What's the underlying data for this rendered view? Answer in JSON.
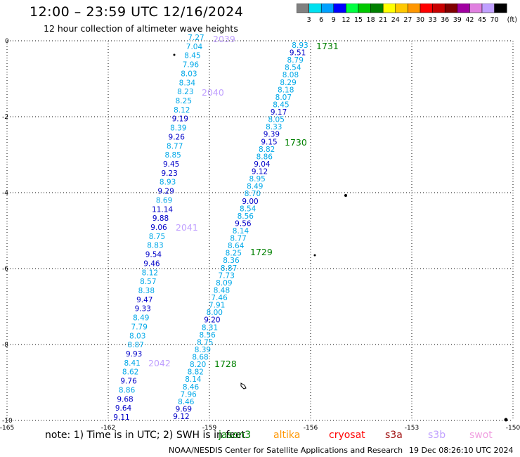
{
  "title": "12:00 – 23:59 UTC 12/16/2024",
  "subtitle": "12 hour collection of altimeter wave heights",
  "colorbar": {
    "unit": "(ft)",
    "labels": [
      "3",
      "6",
      "9",
      "12",
      "15",
      "18",
      "21",
      "24",
      "27",
      "30",
      "33",
      "36",
      "39",
      "42",
      "45",
      "70"
    ],
    "colors": [
      "#808080",
      "#00e0f0",
      "#00a0ff",
      "#0000ff",
      "#00ff40",
      "#00c800",
      "#008000",
      "#ffff00",
      "#ffc800",
      "#ff9600",
      "#ff0000",
      "#c80000",
      "#800000",
      "#a000a0",
      "#e080e0",
      "#c0a0ff",
      "#000000"
    ]
  },
  "axes": {
    "lon_labels": [
      "-165",
      "-162",
      "-159",
      "-156",
      "-153",
      "-150"
    ],
    "lat_labels": [
      "0",
      "-2",
      "-4",
      "-6",
      "-8",
      "-10"
    ]
  },
  "tracks": [
    {
      "label": "2039",
      "color": "#c0a0ff"
    },
    {
      "label": "2040",
      "color": "#c0a0ff"
    },
    {
      "label": "2041",
      "color": "#c0a0ff"
    },
    {
      "label": "2042",
      "color": "#c0a0ff"
    },
    {
      "label": "1731",
      "color": "#008000"
    },
    {
      "label": "1730",
      "color": "#008000"
    },
    {
      "label": "1729",
      "color": "#008000"
    },
    {
      "label": "1728",
      "color": "#008000"
    }
  ],
  "track1_values": [
    "7.27",
    "7.04",
    "8.45",
    "7.96",
    "8.03",
    "8.34",
    "8.23",
    "8.25",
    "8.12",
    "9.19",
    "8.39",
    "9.26",
    "8.77",
    "8.85",
    "9.45",
    "9.23",
    "8.93",
    "9.29",
    "8.69",
    "11.14",
    "9.88",
    "9.06",
    "8.75",
    "8.83",
    "9.54",
    "9.46",
    "8.12",
    "8.57",
    "8.38",
    "9.47",
    "9.33",
    "8.49",
    "7.79",
    "8.03",
    "8.87",
    "9.93",
    "8.41",
    "8.62",
    "9.76",
    "8.86",
    "9.68",
    "9.64",
    "9.11"
  ],
  "track2_values": [
    "8.93",
    "9.51",
    "8.79",
    "8.54",
    "8.08",
    "8.29",
    "8.18",
    "8.07",
    "8.45",
    "9.17",
    "8.05",
    "8.33",
    "9.39",
    "9.15",
    "8.82",
    "8.86",
    "9.04",
    "9.12",
    "8.95",
    "8.49",
    "8.70",
    "9.00",
    "8.54",
    "8.56",
    "9.56",
    "8.14",
    "8.77",
    "8.64",
    "8.25",
    "8.36",
    "8.87",
    "7.73",
    "8.09",
    "8.48",
    "7.46",
    "7.91",
    "8.00",
    "9.20",
    "8.31",
    "8.56",
    "8.75",
    "8.39",
    "8.68",
    "8.20",
    "8.82",
    "8.14",
    "8.46",
    "7.96",
    "8.46",
    "9.69",
    "9.12"
  ],
  "footer": {
    "note": "note:  1) Time is in UTC;  2) SWH is in feet",
    "satellites": [
      {
        "name": "jason3",
        "color": "#008000"
      },
      {
        "name": "altika",
        "color": "#ff9600"
      },
      {
        "name": "cryosat",
        "color": "#ff0000"
      },
      {
        "name": "s3a",
        "color": "#a01010"
      },
      {
        "name": "s3b",
        "color": "#c0a0ff"
      },
      {
        "name": "swot",
        "color": "#f0a0e0"
      }
    ],
    "credit": "NOAA/NESDIS Center for Satellite Applications and Research",
    "timestamp": "19 Dec 08:26:10 UTC 2024"
  }
}
